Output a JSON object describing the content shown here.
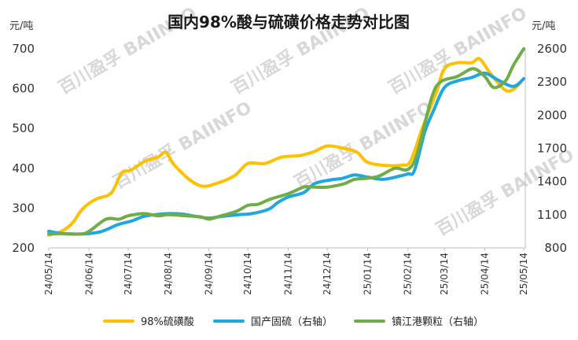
{
  "chart_data": {
    "type": "line",
    "title": "国内98%酸与硫磺价格走势对比图",
    "left_axis": {
      "unit_label": "元/吨",
      "ylim": [
        200,
        700
      ],
      "ticks": [
        "200",
        "300",
        "400",
        "500",
        "600",
        "700"
      ]
    },
    "right_axis": {
      "unit_label": "元/吨",
      "ylim": [
        800,
        2600
      ],
      "ticks": [
        "800",
        "1100",
        "1400",
        "1700",
        "2000",
        "2300",
        "2600"
      ]
    },
    "x_ticks": [
      "24/05/14",
      "24/06/14",
      "24/07/14",
      "24/08/14",
      "24/09/14",
      "24/10/14",
      "24/11/14",
      "24/12/14",
      "25/01/14",
      "25/02/14",
      "25/03/14",
      "25/04/14",
      "25/05/14"
    ],
    "grid": false,
    "legend_position": "bottom",
    "series": [
      {
        "name": "98%硫磺酸",
        "axis": "left",
        "color": "#FFC000",
        "points": [
          [
            "24/05/14",
            232
          ],
          [
            "24/05/24",
            242
          ],
          [
            "24/06/01",
            262
          ],
          [
            "24/06/09",
            298
          ],
          [
            "24/06/19",
            322
          ],
          [
            "24/07/01",
            338
          ],
          [
            "24/07/09",
            388
          ],
          [
            "24/07/16",
            395
          ],
          [
            "24/07/27",
            418
          ],
          [
            "24/08/06",
            428
          ],
          [
            "24/08/12",
            440
          ],
          [
            "24/08/18",
            410
          ],
          [
            "24/08/30",
            372
          ],
          [
            "24/09/09",
            355
          ],
          [
            "24/09/20",
            362
          ],
          [
            "24/10/04",
            382
          ],
          [
            "24/10/14",
            412
          ],
          [
            "24/10/27",
            412
          ],
          [
            "24/11/09",
            428
          ],
          [
            "24/11/23",
            432
          ],
          [
            "24/12/04",
            442
          ],
          [
            "24/12/14",
            456
          ],
          [
            "24/12/27",
            450
          ],
          [
            "25/01/06",
            440
          ],
          [
            "25/01/14",
            415
          ],
          [
            "25/01/28",
            407
          ],
          [
            "25/02/09",
            408
          ],
          [
            "25/02/16",
            418
          ],
          [
            "25/02/25",
            500
          ],
          [
            "25/03/08",
            592
          ],
          [
            "25/03/14",
            650
          ],
          [
            "25/03/24",
            665
          ],
          [
            "25/04/04",
            665
          ],
          [
            "25/04/10",
            675
          ],
          [
            "25/04/18",
            640
          ],
          [
            "25/04/29",
            598
          ],
          [
            "25/05/06",
            598
          ],
          [
            "25/05/14",
            625
          ]
        ]
      },
      {
        "name": "国产固硫（右轴）",
        "axis": "right",
        "color": "#1EA7E1",
        "points": [
          [
            "24/05/14",
            950
          ],
          [
            "24/05/24",
            930
          ],
          [
            "24/06/03",
            925
          ],
          [
            "24/06/14",
            930
          ],
          [
            "24/06/24",
            950
          ],
          [
            "24/07/06",
            1010
          ],
          [
            "24/07/17",
            1045
          ],
          [
            "24/07/26",
            1085
          ],
          [
            "24/08/04",
            1100
          ],
          [
            "24/08/14",
            1110
          ],
          [
            "24/08/25",
            1105
          ],
          [
            "24/09/04",
            1085
          ],
          [
            "24/09/14",
            1070
          ],
          [
            "24/09/24",
            1085
          ],
          [
            "24/10/07",
            1100
          ],
          [
            "24/10/17",
            1110
          ],
          [
            "24/10/30",
            1150
          ],
          [
            "24/11/06",
            1210
          ],
          [
            "24/11/14",
            1260
          ],
          [
            "24/11/26",
            1300
          ],
          [
            "24/12/04",
            1380
          ],
          [
            "24/12/14",
            1410
          ],
          [
            "24/12/26",
            1430
          ],
          [
            "25/01/04",
            1460
          ],
          [
            "25/01/14",
            1440
          ],
          [
            "25/01/26",
            1420
          ],
          [
            "25/02/08",
            1450
          ],
          [
            "25/02/14",
            1470
          ],
          [
            "25/02/19",
            1500
          ],
          [
            "25/02/27",
            1850
          ],
          [
            "25/03/06",
            2050
          ],
          [
            "25/03/14",
            2250
          ],
          [
            "25/03/24",
            2310
          ],
          [
            "25/04/04",
            2340
          ],
          [
            "25/04/14",
            2380
          ],
          [
            "25/04/24",
            2320
          ],
          [
            "25/05/06",
            2260
          ],
          [
            "25/05/14",
            2330
          ]
        ]
      },
      {
        "name": "镇江港颗粒（右轴）",
        "axis": "right",
        "color": "#70AD47",
        "points": [
          [
            "24/05/14",
            925
          ],
          [
            "24/05/24",
            930
          ],
          [
            "24/06/07",
            925
          ],
          [
            "24/06/14",
            950
          ],
          [
            "24/06/27",
            1060
          ],
          [
            "24/07/07",
            1060
          ],
          [
            "24/07/14",
            1090
          ],
          [
            "24/07/26",
            1110
          ],
          [
            "24/08/06",
            1090
          ],
          [
            "24/08/14",
            1100
          ],
          [
            "24/08/28",
            1090
          ],
          [
            "24/09/08",
            1080
          ],
          [
            "24/09/14",
            1060
          ],
          [
            "24/09/22",
            1085
          ],
          [
            "24/10/05",
            1130
          ],
          [
            "24/10/14",
            1185
          ],
          [
            "24/10/22",
            1195
          ],
          [
            "24/10/31",
            1240
          ],
          [
            "24/11/14",
            1290
          ],
          [
            "24/11/26",
            1350
          ],
          [
            "24/12/04",
            1350
          ],
          [
            "24/12/14",
            1350
          ],
          [
            "24/12/27",
            1380
          ],
          [
            "25/01/04",
            1420
          ],
          [
            "25/01/14",
            1430
          ],
          [
            "25/01/23",
            1450
          ],
          [
            "25/02/04",
            1520
          ],
          [
            "25/02/14",
            1510
          ],
          [
            "25/02/21",
            1650
          ],
          [
            "25/03/04",
            2150
          ],
          [
            "25/03/11",
            2300
          ],
          [
            "25/03/24",
            2350
          ],
          [
            "25/04/05",
            2420
          ],
          [
            "25/04/14",
            2350
          ],
          [
            "25/04/21",
            2250
          ],
          [
            "25/04/30",
            2310
          ],
          [
            "25/05/06",
            2450
          ],
          [
            "25/05/14",
            2600
          ]
        ]
      }
    ],
    "watermark": "百川盈孚 BAIINFO"
  }
}
